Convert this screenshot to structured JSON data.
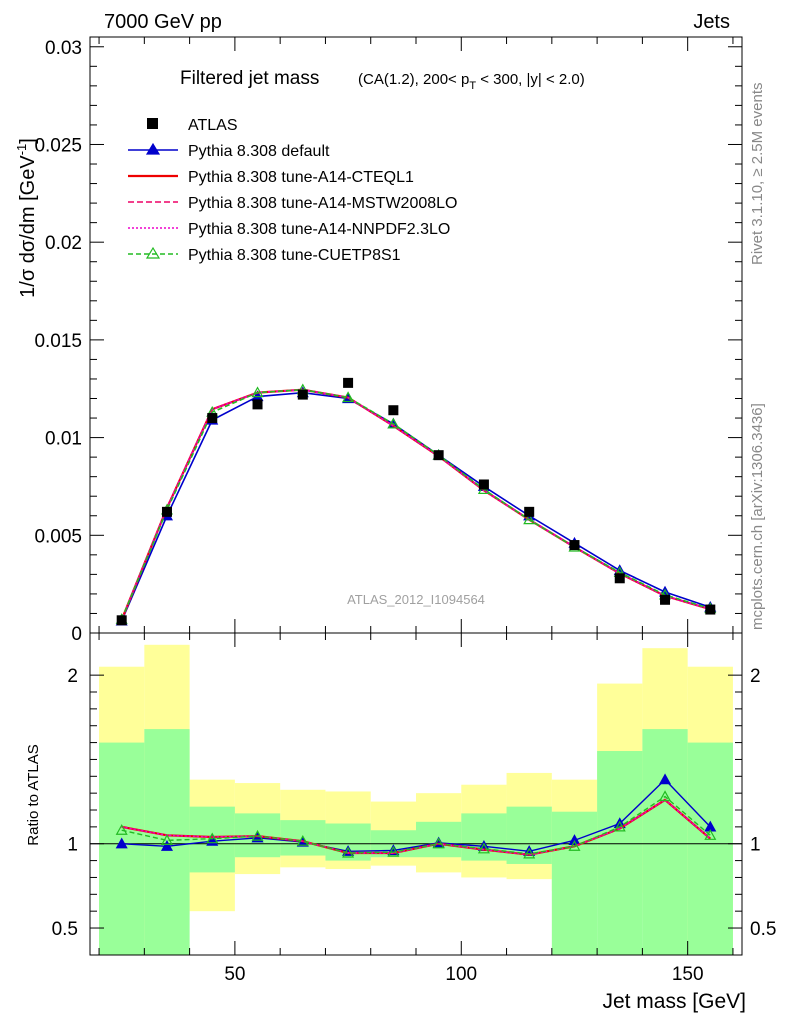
{
  "header": {
    "left": "7000 GeV pp",
    "right": "Jets"
  },
  "side": {
    "top": "Rivet 3.1.10, ≥ 2.5M events",
    "bottom": "mcplots.cern.ch [arXiv:1306.3436]"
  },
  "watermark": "ATLAS_2012_I1094564",
  "chart_data": [
    {
      "type": "line",
      "title": "Filtered jet mass",
      "subtitle": "(CA(1.2), 200< p_T < 300, |y| < 2.0)",
      "ylabel": "1/σ dσ/dm [GeV⁻¹]",
      "xlabel": "",
      "xlim": [
        18,
        162
      ],
      "ylim": [
        0,
        0.0305
      ],
      "x_ticks": [
        50,
        100,
        150
      ],
      "y_ticks": [
        0,
        0.005,
        0.01,
        0.015,
        0.02,
        0.025,
        0.03
      ],
      "y_tick_labels": [
        "0",
        "0.005",
        "0.01",
        "0.015",
        "0.02",
        "0.025",
        "0.03"
      ],
      "x": [
        25,
        35,
        45,
        55,
        65,
        75,
        85,
        95,
        105,
        115,
        125,
        135,
        145,
        155
      ],
      "legend_position": "top-left",
      "series": [
        {
          "name": "ATLAS",
          "style": "data",
          "color": "#000000",
          "values": [
            0.00065,
            0.0062,
            0.011,
            0.0117,
            0.0122,
            0.0128,
            0.0114,
            0.0091,
            0.0076,
            0.0062,
            0.0045,
            0.0028,
            0.0017,
            0.0012
          ]
        },
        {
          "name": "Pythia 8.308 default",
          "style": "solid-triangle",
          "color": "#0000cc",
          "values": [
            0.00062,
            0.006,
            0.0109,
            0.0121,
            0.0123,
            0.012,
            0.0107,
            0.0091,
            0.0075,
            0.006,
            0.0046,
            0.0032,
            0.0021,
            0.00132
          ]
        },
        {
          "name": "Pythia 8.308 tune-A14-CTEQL1",
          "style": "solid",
          "color": "#ee0000",
          "values": [
            0.00068,
            0.0064,
            0.01145,
            0.0123,
            0.01245,
            0.01205,
            0.0106,
            0.00905,
            0.0073,
            0.0058,
            0.0044,
            0.00305,
            0.0019,
            0.00122
          ]
        },
        {
          "name": "Pythia 8.308 tune-A14-MSTW2008LO",
          "style": "dashed",
          "color": "#ee0066",
          "values": [
            0.00068,
            0.0064,
            0.01145,
            0.0123,
            0.01245,
            0.01205,
            0.0106,
            0.00905,
            0.0073,
            0.0058,
            0.0044,
            0.00305,
            0.0019,
            0.00122
          ]
        },
        {
          "name": "Pythia 8.308 tune-A14-NNPDF2.3LO",
          "style": "dotted",
          "color": "#ee00cc",
          "values": [
            0.00068,
            0.0064,
            0.01145,
            0.0123,
            0.01245,
            0.01205,
            0.0106,
            0.00905,
            0.0073,
            0.0058,
            0.0044,
            0.00305,
            0.0019,
            0.00122
          ]
        },
        {
          "name": "Pythia 8.308 tune-CUETP8S1",
          "style": "dashed-open-triangle",
          "color": "#22bb22",
          "values": [
            0.0007,
            0.0063,
            0.0113,
            0.0123,
            0.01245,
            0.01205,
            0.0107,
            0.0091,
            0.00735,
            0.0058,
            0.0044,
            0.0031,
            0.00195,
            0.00125
          ]
        }
      ]
    },
    {
      "type": "line",
      "title": "",
      "ylabel": "Ratio to ATLAS",
      "xlabel": "Jet mass [GeV]",
      "xlim": [
        18,
        162
      ],
      "ylim": [
        0.34,
        2.25
      ],
      "x_ticks": [
        50,
        100,
        150
      ],
      "y_ticks": [
        0.5,
        1,
        2
      ],
      "y_tick_labels": [
        "0.5",
        "1",
        "2"
      ],
      "reference_line": 1,
      "x": [
        25,
        35,
        45,
        55,
        65,
        75,
        85,
        95,
        105,
        115,
        125,
        135,
        145,
        155
      ],
      "bins": [
        [
          20,
          30
        ],
        [
          30,
          40
        ],
        [
          40,
          50
        ],
        [
          50,
          60
        ],
        [
          60,
          70
        ],
        [
          70,
          80
        ],
        [
          80,
          90
        ],
        [
          90,
          100
        ],
        [
          100,
          110
        ],
        [
          110,
          120
        ],
        [
          120,
          130
        ],
        [
          130,
          140
        ],
        [
          140,
          150
        ],
        [
          150,
          160
        ]
      ],
      "uncertainty_bands": [
        {
          "name": "yellow",
          "color": "#ffff99",
          "lo": [
            0.34,
            0.58,
            0.6,
            0.82,
            0.86,
            0.85,
            0.87,
            0.83,
            0.8,
            0.79,
            0.72,
            0.71,
            0.56,
            0.34
          ],
          "hi": [
            2.05,
            2.18,
            1.38,
            1.36,
            1.32,
            1.31,
            1.25,
            1.3,
            1.35,
            1.42,
            1.38,
            1.95,
            2.16,
            2.05
          ]
        },
        {
          "name": "green",
          "color": "#99ff99",
          "lo": [
            0.34,
            0.34,
            0.83,
            0.92,
            0.93,
            0.9,
            0.92,
            0.92,
            0.9,
            0.88,
            0.34,
            0.34,
            0.34,
            0.34
          ],
          "hi": [
            1.6,
            1.68,
            1.22,
            1.18,
            1.14,
            1.12,
            1.08,
            1.13,
            1.18,
            1.22,
            1.19,
            1.55,
            1.68,
            1.6
          ]
        }
      ],
      "series": [
        {
          "name": "Pythia 8.308 default",
          "color": "#0000cc",
          "values": [
            1.0,
            0.985,
            1.015,
            1.035,
            1.01,
            0.955,
            0.96,
            1.005,
            0.985,
            0.955,
            1.02,
            1.12,
            1.38,
            1.1
          ]
        },
        {
          "name": "Pythia 8.308 tune-A14-CTEQL1",
          "color": "#ee0000",
          "values": [
            1.1,
            1.05,
            1.04,
            1.045,
            1.015,
            0.945,
            0.945,
            1.0,
            0.965,
            0.935,
            0.985,
            1.09,
            1.26,
            1.03
          ]
        },
        {
          "name": "Pythia 8.308 tune-A14-MSTW2008LO",
          "color": "#ee0066",
          "values": [
            1.1,
            1.05,
            1.04,
            1.045,
            1.015,
            0.945,
            0.945,
            1.0,
            0.965,
            0.935,
            0.985,
            1.09,
            1.26,
            1.03
          ]
        },
        {
          "name": "Pythia 8.308 tune-A14-NNPDF2.3LO",
          "color": "#ee00cc",
          "values": [
            1.1,
            1.05,
            1.04,
            1.045,
            1.015,
            0.945,
            0.945,
            1.0,
            0.965,
            0.935,
            0.985,
            1.09,
            1.26,
            1.03
          ]
        },
        {
          "name": "Pythia 8.308 tune-CUETP8S1",
          "color": "#22bb22",
          "values": [
            1.08,
            1.02,
            1.03,
            1.045,
            1.015,
            0.945,
            0.95,
            1.0,
            0.97,
            0.94,
            0.985,
            1.1,
            1.28,
            1.05
          ]
        }
      ]
    }
  ]
}
